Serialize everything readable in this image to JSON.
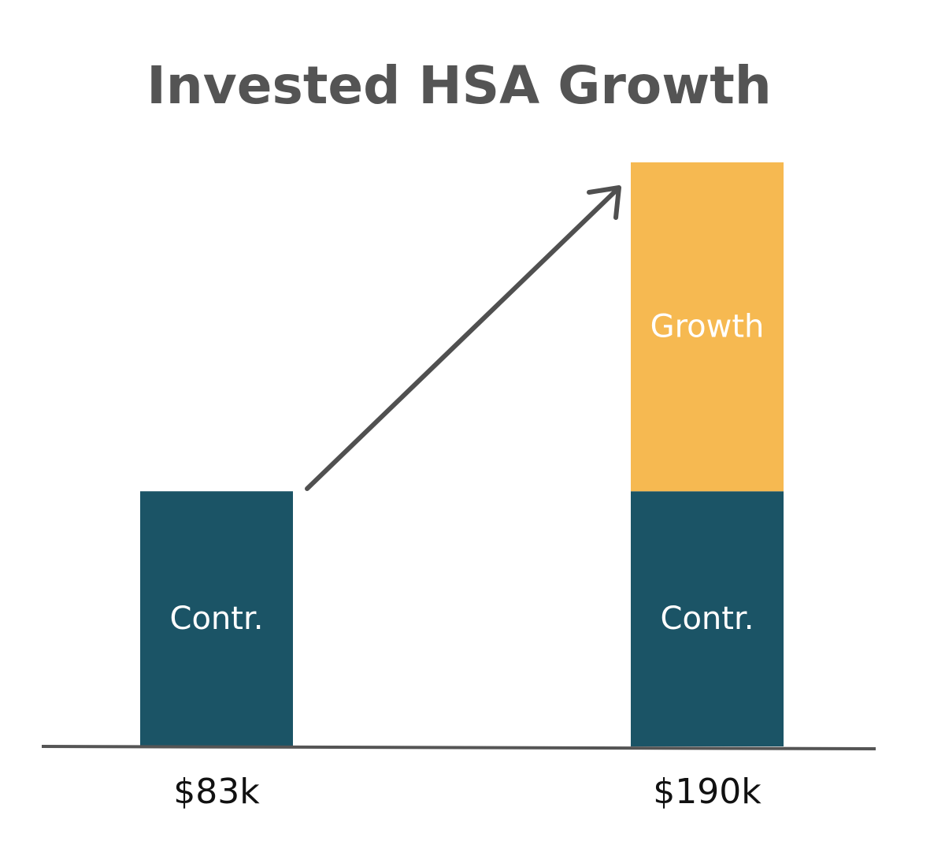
{
  "chart_data": {
    "type": "bar",
    "stacked": true,
    "title": "Invested HSA Growth",
    "categories": [
      "$83k",
      "$190k"
    ],
    "series": [
      {
        "name": "Contr.",
        "color": "#1b5466",
        "values": [
          83000,
          83000
        ]
      },
      {
        "name": "Growth",
        "color": "#f6b951",
        "values": [
          null,
          107000
        ]
      }
    ],
    "ylim": [
      0,
      190000
    ]
  }
}
